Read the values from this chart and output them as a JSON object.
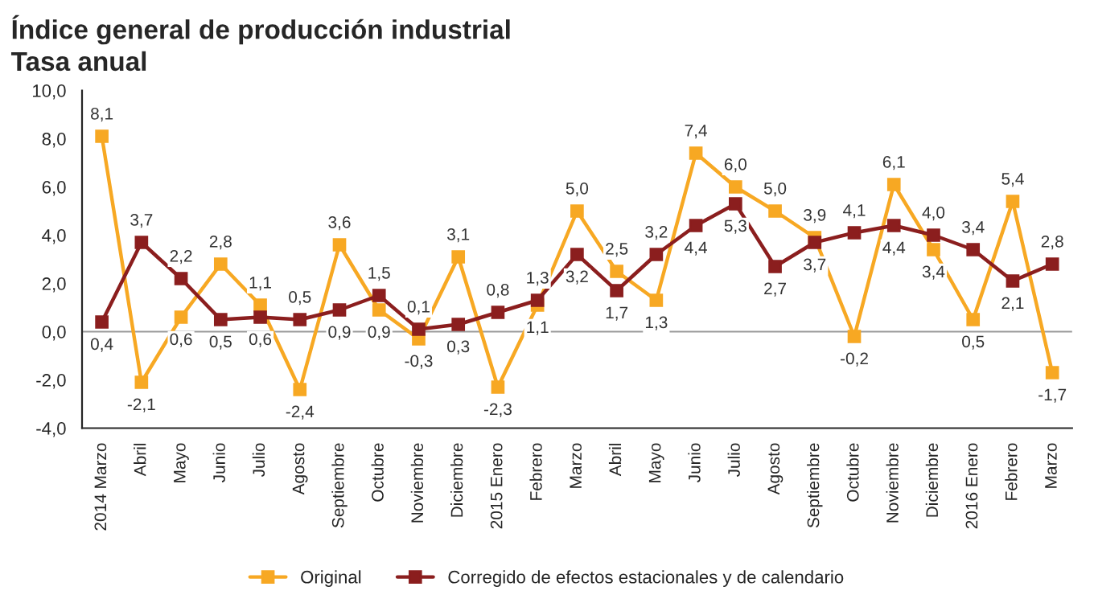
{
  "chart_data": {
    "type": "line",
    "title": "Índice general de producción industrial",
    "subtitle": "Tasa anual",
    "categories": [
      "2014 Marzo",
      "Abril",
      "Mayo",
      "Junio",
      "Julio",
      "Agosto",
      "Septiembre",
      "Octubre",
      "Noviembre",
      "Diciembre",
      "2015 Enero",
      "Febrero",
      "Marzo",
      "Abril",
      "Mayo",
      "Junio",
      "Julio",
      "Agosto",
      "Septiembre",
      "Octubre",
      "Noviembre",
      "Diciembre",
      "2016 Enero",
      "Febrero",
      "Marzo"
    ],
    "series": [
      {
        "name": "Original",
        "color": "#f7a823",
        "values": [
          8.1,
          -2.1,
          0.6,
          2.8,
          1.1,
          -2.4,
          3.6,
          0.9,
          -0.3,
          3.1,
          -2.3,
          1.1,
          5.0,
          2.5,
          1.3,
          7.4,
          6.0,
          5.0,
          3.9,
          -0.2,
          6.1,
          3.4,
          0.5,
          5.4,
          -1.7
        ],
        "value_labels": [
          "8,1",
          "-2,1",
          "0,6",
          "2,8",
          "1,1",
          "-2,4",
          "3,6",
          "0,9",
          "-0,3",
          "3,1",
          "-2,3",
          "1,1",
          "5,0",
          "2,5",
          "1,3",
          "7,4",
          "6,0",
          "5,0",
          "3,9",
          "-0,2",
          "6,1",
          "3,4",
          "0,5",
          "5,4",
          "-1,7"
        ]
      },
      {
        "name": "Corregido de efectos estacionales y de calendario",
        "color": "#8b1e1e",
        "values": [
          0.4,
          3.7,
          2.2,
          0.5,
          0.6,
          0.5,
          0.9,
          1.5,
          0.1,
          0.3,
          0.8,
          1.3,
          3.2,
          1.7,
          3.2,
          4.4,
          5.3,
          2.7,
          3.7,
          4.1,
          4.4,
          4.0,
          3.4,
          2.1,
          2.8
        ],
        "value_labels": [
          "0,4",
          "3,7",
          "2,2",
          "0,5",
          "0,6",
          "0,5",
          "0,9",
          "1,5",
          "0,1",
          "0,3",
          "0,8",
          "1,3",
          "3,2",
          "1,7",
          "3,2",
          "4,4",
          "5,3",
          "2,7",
          "3,7",
          "4,1",
          "4,4",
          "4,0",
          "3,4",
          "2,1",
          "2,8"
        ]
      }
    ],
    "ylim": [
      -4.0,
      10.0
    ],
    "yticks": [
      {
        "value": -4.0,
        "label": "-4,0"
      },
      {
        "value": -2.0,
        "label": "-2,0"
      },
      {
        "value": 0.0,
        "label": "0,0"
      },
      {
        "value": 2.0,
        "label": "2,0"
      },
      {
        "value": 4.0,
        "label": "4,0"
      },
      {
        "value": 6.0,
        "label": "6,0"
      },
      {
        "value": 8.0,
        "label": "8,0"
      },
      {
        "value": 10.0,
        "label": "10,0"
      }
    ],
    "ref_lines": [
      {
        "axis": "y",
        "value": 0.0,
        "color": "#999999"
      }
    ],
    "marker": "square",
    "line_style": "solid",
    "grid": false,
    "legend": "bottom"
  }
}
